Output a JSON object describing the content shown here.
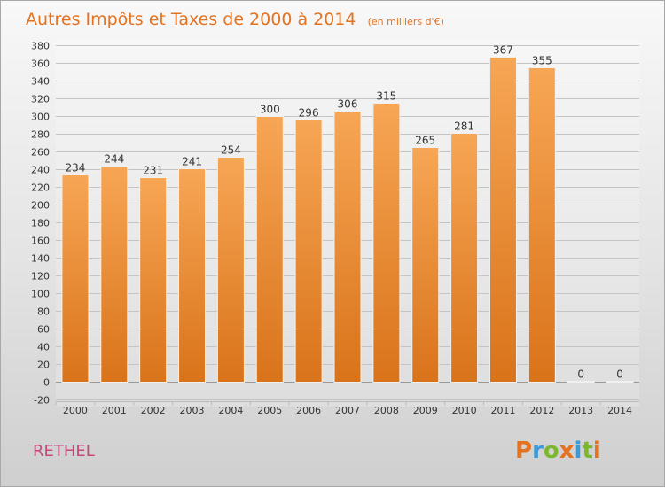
{
  "chart_data": {
    "type": "bar",
    "title": "Autres Impôts et Taxes de 2000 à 2014",
    "subtitle": "(en milliers d'€)",
    "categories": [
      "2000",
      "2001",
      "2002",
      "2003",
      "2004",
      "2005",
      "2006",
      "2007",
      "2008",
      "2009",
      "2010",
      "2011",
      "2012",
      "2013",
      "2014"
    ],
    "values": [
      234,
      244,
      231,
      241,
      254,
      300,
      296,
      306,
      315,
      265,
      281,
      367,
      355,
      0,
      0
    ],
    "value_labels": [
      "234",
      "244",
      "231",
      "241",
      "254",
      "300",
      "296",
      "306",
      "315",
      "265",
      "281",
      "367",
      "355",
      "0",
      "0"
    ],
    "ylim": [
      -20,
      380
    ],
    "yticks": [
      -20,
      0,
      20,
      40,
      60,
      80,
      100,
      120,
      140,
      160,
      180,
      200,
      220,
      240,
      260,
      280,
      300,
      320,
      340,
      360,
      380
    ],
    "ytick_labels": [
      "-20",
      "0",
      "20",
      "40",
      "60",
      "80",
      "100",
      "120",
      "140",
      "160",
      "180",
      "200",
      "220",
      "240",
      "260",
      "280",
      "300",
      "320",
      "340",
      "360",
      "380"
    ],
    "grid": true,
    "bar_color_top": "#f7a655",
    "bar_color_bottom": "#d9731a"
  },
  "footer": {
    "city": "RETHEL",
    "logo": "Proxiti"
  },
  "logo_colors": [
    "#e4721f",
    "#3d9ad6",
    "#7cb82f",
    "#e4721f",
    "#3d9ad6",
    "#7cb82f",
    "#e4721f"
  ]
}
